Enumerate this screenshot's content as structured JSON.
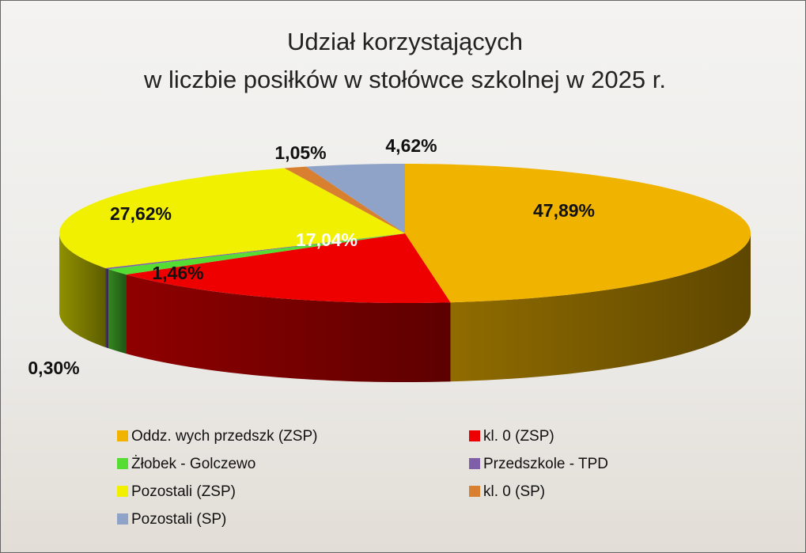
{
  "chart_data": {
    "type": "pie3d",
    "title": [
      "Udział korzystających",
      "w liczbie posiłków w stołówce szkolnej w 2025 r."
    ],
    "categories": [
      "Oddz. wych przedszk (ZSP)",
      "kl. 0 (ZSP)",
      "Żłobek - Golczewo",
      "Przedszkole - TPD",
      "Pozostali (ZSP)",
      "kl. 0 (SP)",
      "Pozostali (SP)"
    ],
    "values": [
      47.89,
      17.04,
      1.46,
      0.3,
      27.62,
      1.05,
      4.62
    ],
    "value_labels": [
      "47,89%",
      "17,04%",
      "1,46%",
      "0,30%",
      "27,62%",
      "1,05%",
      "4,62%"
    ],
    "colors": [
      "#f0b400",
      "#ee0000",
      "#55dd33",
      "#7f5fa8",
      "#f0f000",
      "#d98030",
      "#8fa3c8"
    ],
    "legend": "bottom"
  }
}
